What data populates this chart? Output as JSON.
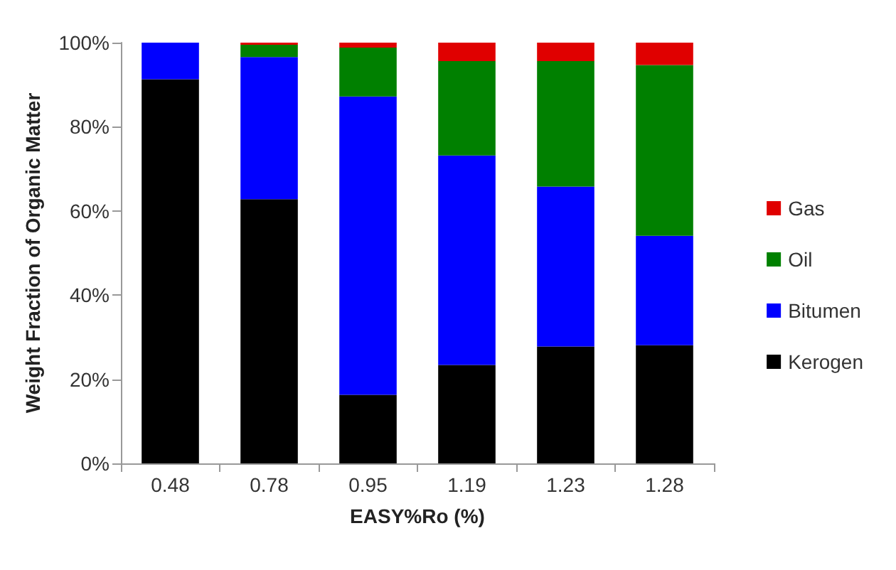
{
  "chart_data": {
    "type": "bar",
    "stacked": true,
    "xlabel": "EASY%Ro (%)",
    "ylabel": "Weight Fraction of Organic Matter",
    "categories": [
      "0.48",
      "0.78",
      "0.95",
      "1.19",
      "1.23",
      "1.28"
    ],
    "series": [
      {
        "name": "Kerogen",
        "color": "#000000",
        "values": [
          91.3,
          62.8,
          16.3,
          23.4,
          27.8,
          28.1
        ]
      },
      {
        "name": "Bitumen",
        "color": "#0000ff",
        "values": [
          8.7,
          33.8,
          70.9,
          49.8,
          38.0,
          26.0
        ]
      },
      {
        "name": "Oil",
        "color": "#008000",
        "values": [
          0,
          2.9,
          11.6,
          22.4,
          29.8,
          40.6
        ]
      },
      {
        "name": "Gas",
        "color": "#e00000",
        "values": [
          0,
          0.5,
          1.2,
          4.4,
          4.4,
          5.3
        ]
      }
    ],
    "ylim": [
      0,
      100
    ],
    "yticks": [
      {
        "value": 0,
        "label": "0%"
      },
      {
        "value": 20,
        "label": "20%"
      },
      {
        "value": 40,
        "label": "40%"
      },
      {
        "value": 60,
        "label": "60%"
      },
      {
        "value": 80,
        "label": "80%"
      },
      {
        "value": 100,
        "label": "100%"
      }
    ],
    "grid": false,
    "legend": "right"
  }
}
